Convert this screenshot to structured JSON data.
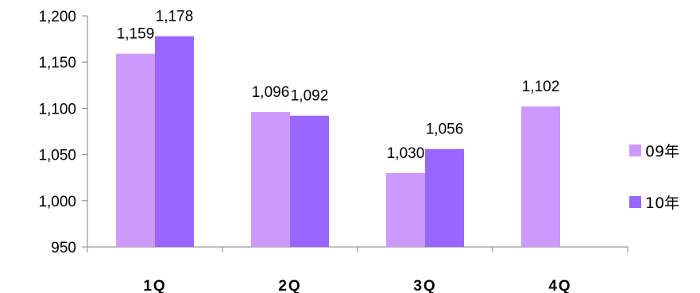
{
  "chart_data": {
    "type": "bar",
    "title": "",
    "xlabel": "",
    "ylabel": "",
    "categories": [
      "1Q",
      "2Q",
      "3Q",
      "4Q"
    ],
    "series": [
      {
        "name": "09年",
        "color": "#CC99FF",
        "values": [
          1159,
          1096,
          1030,
          1102
        ]
      },
      {
        "name": "10年",
        "color": "#9966FF",
        "values": [
          1178,
          1092,
          1056,
          null
        ]
      }
    ],
    "ylim": [
      950,
      1200
    ],
    "yticks": [
      950,
      1000,
      1050,
      1100,
      1150,
      1200
    ],
    "ytick_labels": [
      "950",
      "1,000",
      "1,050",
      "1,100",
      "1,150",
      "1,200"
    ],
    "data_labels": [
      [
        "1,159",
        "1,096",
        "1,030",
        "1,102"
      ],
      [
        "1,178",
        "1,092",
        "1,056",
        null
      ]
    ],
    "grid": false,
    "legend_position": "right"
  }
}
